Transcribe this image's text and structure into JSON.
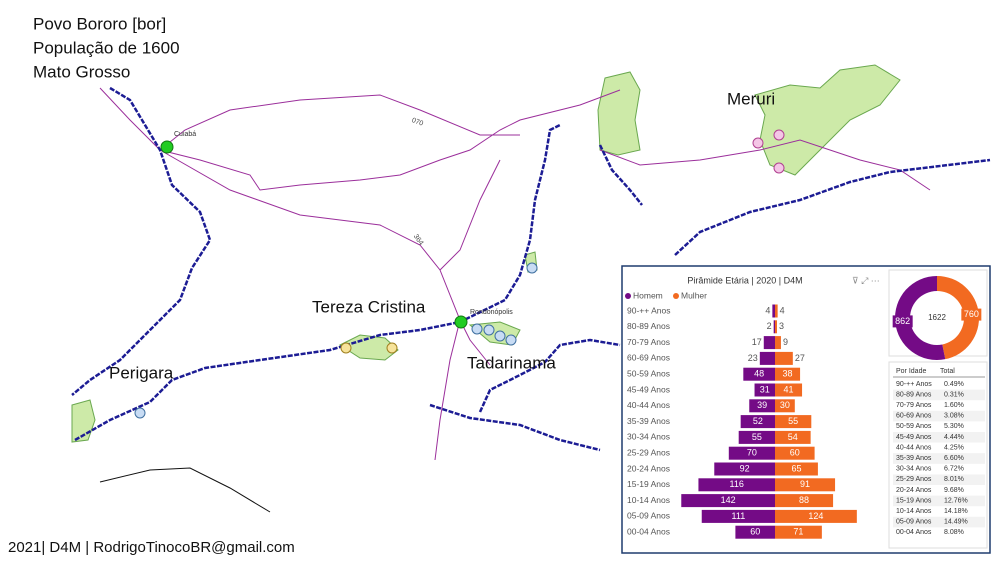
{
  "header": {
    "lines": [
      "Povo Bororo [bor]",
      "População de 1600",
      "Mato Grosso"
    ]
  },
  "map": {
    "places": [
      "Meruri",
      "Tereza Cristina",
      "Perigara",
      "Tadarinama"
    ],
    "cities": [
      "Cuiabá",
      "Rondonópolis"
    ],
    "roads": [
      "070",
      "364"
    ]
  },
  "footer": "2021| D4M | RodrigoTinocoBR@gmail.com",
  "chart_data": [
    {
      "type": "bar",
      "title": "Pirâmide Etária | 2020 | D4M",
      "categories": [
        "90-++ Anos",
        "80-89 Anos",
        "70-79 Anos",
        "60-69 Anos",
        "50-59 Anos",
        "45-49 Anos",
        "40-44 Anos",
        "35-39 Anos",
        "30-34 Anos",
        "25-29 Anos",
        "20-24 Anos",
        "15-19 Anos",
        "10-14 Anos",
        "05-09 Anos",
        "00-04 Anos"
      ],
      "series": [
        {
          "name": "Homem",
          "color": "#740b86",
          "values": [
            4,
            2,
            17,
            23,
            48,
            31,
            39,
            52,
            55,
            70,
            92,
            116,
            142,
            111,
            60
          ]
        },
        {
          "name": "Mulher",
          "color": "#f26a21",
          "values": [
            4,
            3,
            9,
            27,
            38,
            41,
            30,
            55,
            54,
            60,
            65,
            91,
            88,
            124,
            71
          ]
        }
      ]
    },
    {
      "type": "pie",
      "donut": true,
      "values": [
        862,
        760
      ],
      "colors": [
        "#740b86",
        "#f26a21"
      ],
      "total": 1622
    }
  ],
  "table": {
    "header": [
      "Por Idade",
      "Total"
    ],
    "rows": [
      [
        "90-++ Anos",
        "0.49%"
      ],
      [
        "80-89 Anos",
        "0.31%"
      ],
      [
        "70-79 Anos",
        "1.60%"
      ],
      [
        "60-69 Anos",
        "3.08%"
      ],
      [
        "50-59 Anos",
        "5.30%"
      ],
      [
        "45-49 Anos",
        "4.44%"
      ],
      [
        "40-44 Anos",
        "4.25%"
      ],
      [
        "35-39 Anos",
        "6.60%"
      ],
      [
        "30-34 Anos",
        "6.72%"
      ],
      [
        "25-29 Anos",
        "8.01%"
      ],
      [
        "20-24 Anos",
        "9.68%"
      ],
      [
        "15-19 Anos",
        "12.76%"
      ],
      [
        "10-14 Anos",
        "14.18%"
      ],
      [
        "05-09 Anos",
        "14.49%"
      ],
      [
        "00-04 Anos",
        "8.08%"
      ]
    ]
  }
}
